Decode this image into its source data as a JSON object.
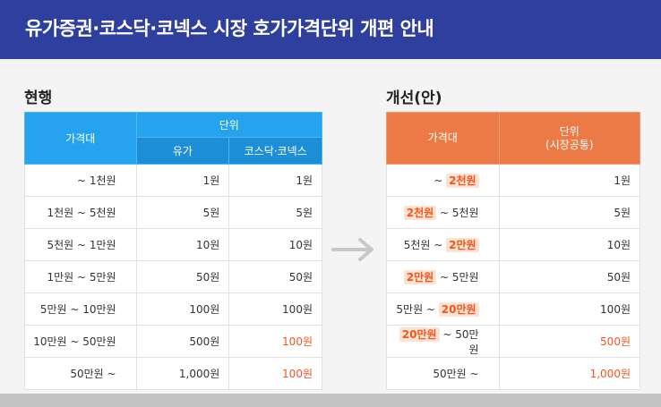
{
  "title": "유가증권·코스닥·코넥스 시장  호가가격단위  개편 안내",
  "current": {
    "label": "현행",
    "header_price": "가격대",
    "header_unit": "단위",
    "header_kospi": "유가",
    "header_kosdaq": "코스닥·코넥스",
    "rows": [
      {
        "range": "~ 1천원",
        "kospi": "1원",
        "kosdaq": "1원",
        "kosdaq_red": false
      },
      {
        "range": "1천원 ~ 5천원",
        "kospi": "5원",
        "kosdaq": "5원",
        "kosdaq_red": false
      },
      {
        "range": "5천원 ~ 1만원",
        "kospi": "10원",
        "kosdaq": "10원",
        "kosdaq_red": false
      },
      {
        "range": "1만원 ~ 5만원",
        "kospi": "50원",
        "kosdaq": "50원",
        "kosdaq_red": false
      },
      {
        "range": "5만원 ~ 10만원",
        "kospi": "100원",
        "kosdaq": "100원",
        "kosdaq_red": false
      },
      {
        "range": "10만원 ~ 50만원",
        "kospi": "500원",
        "kosdaq": "100원",
        "kosdaq_red": true
      },
      {
        "range": "50만원 ~",
        "kospi": "1,000원",
        "kosdaq": "100원",
        "kosdaq_red": true
      }
    ]
  },
  "improved": {
    "label": "개선(안)",
    "header_price": "가격대",
    "header_unit_line1": "단위",
    "header_unit_line2": "(시장공통)",
    "rows": [
      {
        "pre": "~ ",
        "hl1": "2천원",
        "mid": "",
        "hl2": "",
        "post": "",
        "unit": "1원",
        "unit_red": false
      },
      {
        "pre": "",
        "hl1": "2천원",
        "mid": " ~ 5천원",
        "hl2": "",
        "post": "",
        "unit": "5원",
        "unit_red": false
      },
      {
        "pre": "5천원 ~ ",
        "hl1": "2만원",
        "mid": "",
        "hl2": "",
        "post": "",
        "unit": "10원",
        "unit_red": false
      },
      {
        "pre": "",
        "hl1": "2만원",
        "mid": " ~ 5만원",
        "hl2": "",
        "post": "",
        "unit": "50원",
        "unit_red": false
      },
      {
        "pre": "5만원 ~ ",
        "hl1": "20만원",
        "mid": "",
        "hl2": "",
        "post": "",
        "unit": "100원",
        "unit_red": false
      },
      {
        "pre": "",
        "hl1": "20만원",
        "mid": " ~ 50만원",
        "hl2": "",
        "post": "",
        "unit": "500원",
        "unit_red": true
      },
      {
        "pre": "50만원 ~",
        "hl1": "",
        "mid": "",
        "hl2": "",
        "post": "",
        "unit": "1,000원",
        "unit_red": true
      }
    ]
  },
  "arrow_icon": "right-arrow-icon",
  "colors": {
    "header_band": "#2f3f9e",
    "current_header": "#25a3ee",
    "improved_header": "#eb7a46",
    "highlight_text": "#f5541e",
    "highlight_bg": "#fbe3d2"
  }
}
